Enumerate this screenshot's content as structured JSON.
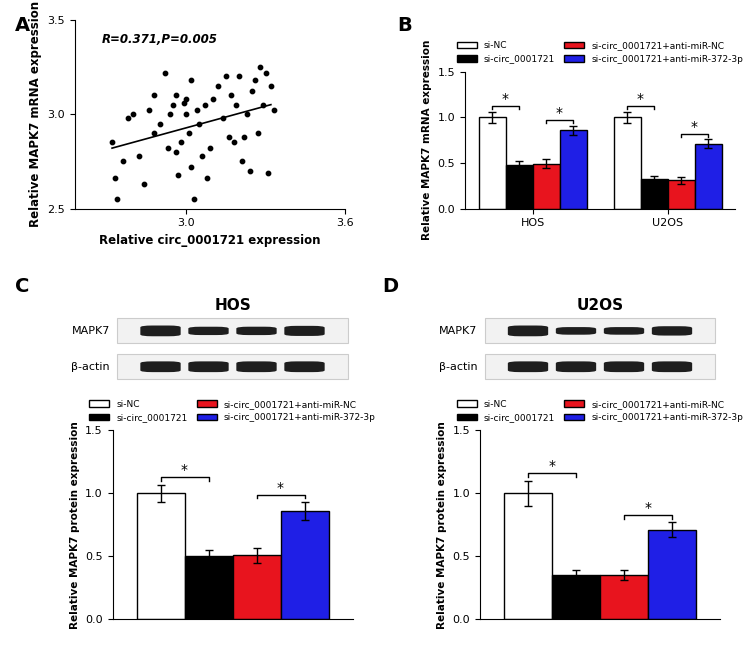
{
  "chart_data": [
    {
      "type": "scatter",
      "panel": "A",
      "x_label": "Relative circ_0001721 expression",
      "y_label": "Relative MAPK7 mRNA expression",
      "annotation": "R=0.371,P=0.005",
      "color": "#000000",
      "x": [
        2.72,
        2.73,
        2.74,
        2.76,
        2.78,
        2.8,
        2.82,
        2.84,
        2.86,
        2.88,
        2.88,
        2.9,
        2.92,
        2.93,
        2.94,
        2.95,
        2.96,
        2.96,
        2.97,
        2.98,
        2.99,
        3.0,
        3.0,
        3.01,
        3.02,
        3.02,
        3.03,
        3.04,
        3.05,
        3.06,
        3.07,
        3.08,
        3.09,
        3.1,
        3.12,
        3.14,
        3.15,
        3.16,
        3.17,
        3.18,
        3.19,
        3.2,
        3.21,
        3.22,
        3.23,
        3.24,
        3.25,
        3.26,
        3.27,
        3.28,
        3.29,
        3.3,
        3.31,
        3.32,
        3.33
      ],
      "values": [
        2.85,
        2.66,
        2.55,
        2.75,
        2.98,
        3.0,
        2.78,
        2.63,
        3.02,
        2.9,
        3.1,
        2.95,
        3.22,
        2.82,
        3.0,
        3.05,
        2.8,
        3.1,
        2.68,
        2.85,
        3.06,
        3.0,
        3.08,
        2.9,
        2.72,
        3.18,
        2.55,
        3.02,
        2.95,
        2.78,
        3.05,
        2.66,
        2.82,
        3.08,
        3.15,
        2.98,
        3.2,
        2.88,
        3.1,
        2.85,
        3.05,
        3.2,
        2.75,
        2.88,
        3.0,
        2.7,
        3.12,
        3.18,
        2.9,
        3.25,
        3.05,
        3.22,
        2.69,
        3.15,
        3.02
      ],
      "trend_line": {
        "x": [
          2.72,
          3.32
        ],
        "y": [
          2.82,
          3.05
        ]
      },
      "xlim": [
        2.58,
        3.6
      ],
      "xticks": [
        {
          "value": 3.0,
          "label": "3.0"
        },
        3.6
      ],
      "ylim": [
        2.5,
        3.5
      ],
      "yticks": [
        2.5,
        {
          "value": 3.0,
          "label": "3.0"
        },
        3.5
      ]
    },
    {
      "type": "bar",
      "panel": "B",
      "y_label": "Relative MAPK7 mRNA expression",
      "categories": [
        "HOS",
        "U2OS"
      ],
      "series": [
        {
          "name": "si-NC",
          "color": "#ffffff",
          "values": [
            1.0,
            1.0
          ],
          "errors": [
            0.06,
            0.06
          ]
        },
        {
          "name": "si-circ_0001721",
          "color": "#000000",
          "values": [
            0.48,
            0.33
          ],
          "errors": [
            0.04,
            0.03
          ]
        },
        {
          "name": "si-circ_0001721+anti-miR-NC",
          "color": "#e8141e",
          "values": [
            0.49,
            0.31
          ],
          "errors": [
            0.05,
            0.04
          ]
        },
        {
          "name": "si-circ_0001721+anti-miR-372-3p",
          "color": "#1f1fe6",
          "values": [
            0.86,
            0.71
          ],
          "errors": [
            0.05,
            0.05
          ]
        }
      ],
      "comparisons": [
        {
          "category": "HOS",
          "series": [
            "si-NC",
            "si-circ_0001721"
          ],
          "label": "*"
        },
        {
          "category": "HOS",
          "series": [
            "si-circ_0001721+anti-miR-NC",
            "si-circ_0001721+anti-miR-372-3p"
          ],
          "label": "*"
        },
        {
          "category": "U2OS",
          "series": [
            "si-NC",
            "si-circ_0001721"
          ],
          "label": "*"
        },
        {
          "category": "U2OS",
          "series": [
            "si-circ_0001721+anti-miR-NC",
            "si-circ_0001721+anti-miR-372-3p"
          ],
          "label": "*"
        }
      ],
      "legend": "above",
      "ylim": [
        0,
        1.5
      ],
      "yticks": [
        {
          "value": 0,
          "label": "0.0"
        },
        0.5,
        {
          "value": 1.0,
          "label": "1.0"
        },
        1.5
      ]
    },
    {
      "type": "bar",
      "panel": "C",
      "title": "HOS",
      "y_label": "Relative MAPK7 protein expression",
      "blot_rows": [
        "MAPK7",
        "β-actin"
      ],
      "categories": [
        null
      ],
      "series": [
        {
          "name": "si-NC",
          "color": "#ffffff",
          "values": [
            1.0
          ],
          "errors": [
            0.07
          ]
        },
        {
          "name": "si-circ_0001721",
          "color": "#000000",
          "values": [
            0.5
          ],
          "errors": [
            0.05
          ]
        },
        {
          "name": "si-circ_0001721+anti-miR-NC",
          "color": "#e8141e",
          "values": [
            0.51
          ],
          "errors": [
            0.06
          ]
        },
        {
          "name": "si-circ_0001721+anti-miR-372-3p",
          "color": "#1f1fe6",
          "values": [
            0.86
          ],
          "errors": [
            0.07
          ]
        }
      ],
      "comparisons": [
        {
          "category": null,
          "series": [
            "si-NC",
            "si-circ_0001721"
          ],
          "label": "*"
        },
        {
          "category": null,
          "series": [
            "si-circ_0001721+anti-miR-NC",
            "si-circ_0001721+anti-miR-372-3p"
          ],
          "label": "*"
        }
      ],
      "legend": "above",
      "tick_labels": "y",
      "ylim": [
        0,
        1.5
      ],
      "yticks": [
        {
          "value": 0,
          "label": "0.0"
        },
        0.5,
        {
          "value": 1.0,
          "label": "1.0"
        },
        1.5
      ]
    },
    {
      "type": "bar",
      "panel": "D",
      "title": "U2OS",
      "y_label": "Relative MAPK7 protein expression",
      "blot_rows": [
        "MAPK7",
        "β-actin"
      ],
      "categories": [
        null
      ],
      "series": [
        {
          "name": "si-NC",
          "color": "#ffffff",
          "values": [
            1.0
          ],
          "errors": [
            0.1
          ]
        },
        {
          "name": "si-circ_0001721",
          "color": "#000000",
          "values": [
            0.35
          ],
          "errors": [
            0.04
          ]
        },
        {
          "name": "si-circ_0001721+anti-miR-NC",
          "color": "#e8141e",
          "values": [
            0.35
          ],
          "errors": [
            0.04
          ]
        },
        {
          "name": "si-circ_0001721+anti-miR-372-3p",
          "color": "#1f1fe6",
          "values": [
            0.71
          ],
          "errors": [
            0.06
          ]
        }
      ],
      "comparisons": [
        {
          "category": null,
          "series": [
            "si-NC",
            "si-circ_0001721"
          ],
          "label": "*"
        },
        {
          "category": null,
          "series": [
            "si-circ_0001721+anti-miR-NC",
            "si-circ_0001721+anti-miR-372-3p"
          ],
          "label": "*"
        }
      ],
      "legend": "above",
      "tick_labels": "y",
      "ylim": [
        0,
        1.5
      ],
      "yticks": [
        {
          "value": 0,
          "label": "0.0"
        },
        0.5,
        {
          "value": 1.0,
          "label": "1.0"
        },
        1.5
      ]
    }
  ]
}
